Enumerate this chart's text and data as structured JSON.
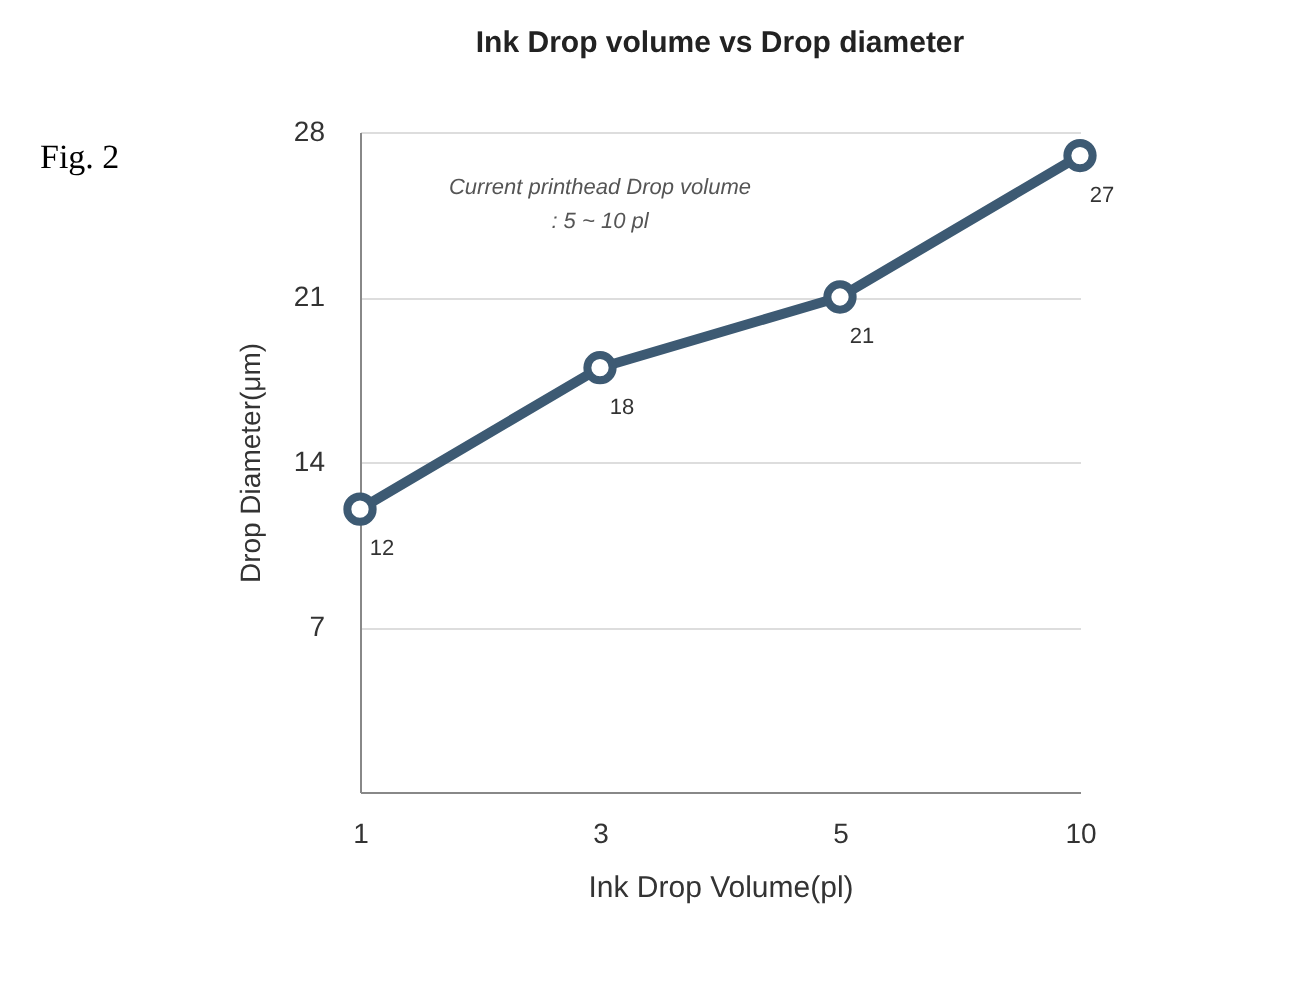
{
  "chart_data": {
    "type": "line",
    "title": "Ink Drop volume vs Drop diameter",
    "xlabel": "Ink Drop Volume(pl)",
    "ylabel": "Drop Diameter(μm)",
    "categories": [
      "1",
      "3",
      "5",
      "10"
    ],
    "series": [
      {
        "color": "#3d5a73",
        "values": [
          12,
          18,
          21,
          27
        ]
      }
    ],
    "ylim": [
      0,
      28
    ],
    "yticks": [
      7,
      14,
      21,
      28
    ],
    "grid": "y",
    "marker": "circle",
    "line_style": "solid",
    "data_labels": true,
    "annotations": [
      "Fig. 2",
      "Current printhead Drop volume",
      ": 5 ~ 10 pl"
    ]
  }
}
